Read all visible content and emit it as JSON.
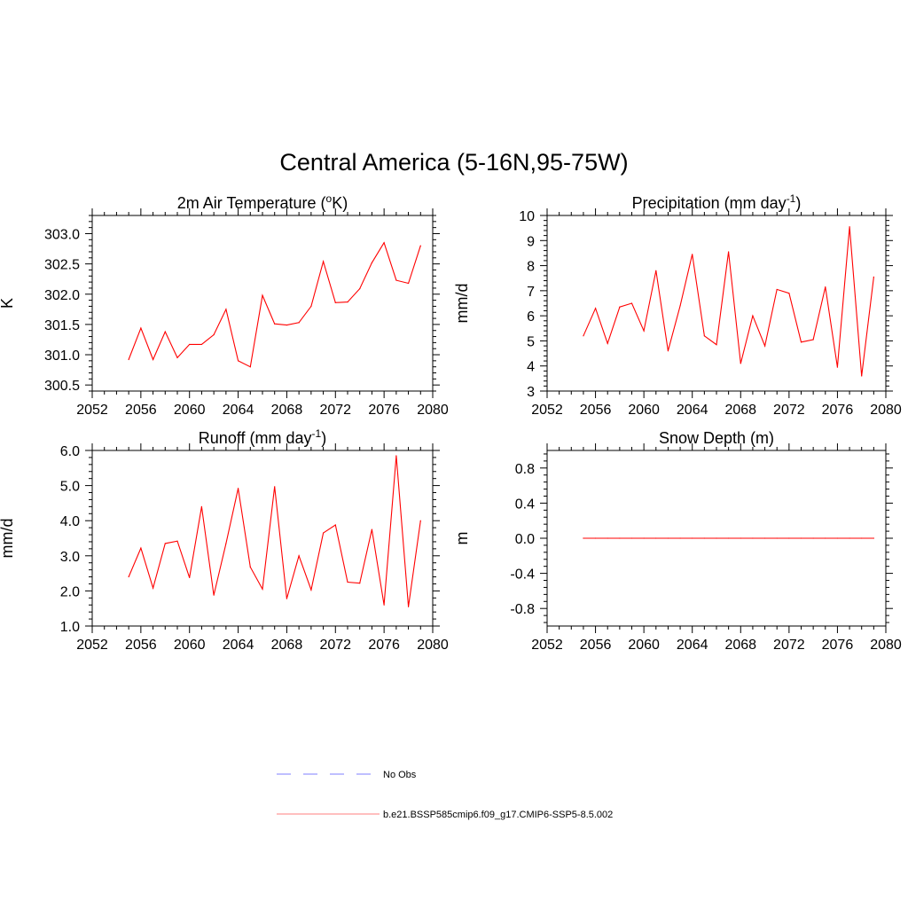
{
  "page": {
    "title": "Central America (5-16N,95-75W)"
  },
  "chart_data": [
    {
      "type": "line",
      "title": "2m Air Temperature (",
      "title_sup": "o",
      "title_suffix": "K)",
      "ylabel": "K",
      "xlim": [
        2052,
        2080
      ],
      "ylim": [
        300.4,
        303.3
      ],
      "x_ticks": [
        2052,
        2056,
        2060,
        2064,
        2068,
        2072,
        2076,
        2080
      ],
      "y_ticks": [
        300.5,
        301.0,
        301.5,
        302.0,
        302.5,
        303.0
      ],
      "y_tick_labels": [
        "300.5",
        "301.0",
        "301.5",
        "302.0",
        "302.5",
        "303.0"
      ],
      "x": [
        2055,
        2056,
        2057,
        2058,
        2059,
        2060,
        2061,
        2062,
        2063,
        2064,
        2065,
        2066,
        2067,
        2068,
        2069,
        2070,
        2071,
        2072,
        2073,
        2074,
        2075,
        2076,
        2077,
        2078,
        2079
      ],
      "series": [
        {
          "values": [
            300.92,
            301.44,
            300.92,
            301.38,
            300.95,
            301.17,
            301.17,
            301.33,
            301.75,
            300.9,
            300.8,
            301.98,
            301.51,
            301.49,
            301.53,
            301.8,
            302.54,
            301.86,
            301.87,
            302.09,
            302.52,
            302.85,
            302.23,
            302.18,
            302.8
          ],
          "color": "#ff0000"
        }
      ]
    },
    {
      "type": "line",
      "title": "Precipitation (mm day",
      "title_sup": "-1",
      "title_suffix": ")",
      "ylabel": "mm/d",
      "xlim": [
        2052,
        2080
      ],
      "ylim": [
        3,
        10
      ],
      "x_ticks": [
        2052,
        2056,
        2060,
        2064,
        2068,
        2072,
        2076,
        2080
      ],
      "y_ticks": [
        3,
        4,
        5,
        6,
        7,
        8,
        9,
        10
      ],
      "y_tick_labels": [
        "3",
        "4",
        "5",
        "6",
        "7",
        "8",
        "9",
        "10"
      ],
      "x": [
        2055,
        2056,
        2057,
        2058,
        2059,
        2060,
        2061,
        2062,
        2063,
        2064,
        2065,
        2066,
        2067,
        2068,
        2069,
        2070,
        2071,
        2072,
        2073,
        2074,
        2075,
        2076,
        2077,
        2078,
        2079
      ],
      "series": [
        {
          "values": [
            5.2,
            6.3,
            4.9,
            6.35,
            6.5,
            5.4,
            7.8,
            4.6,
            6.4,
            8.45,
            5.2,
            4.85,
            8.55,
            4.1,
            6.0,
            4.8,
            7.05,
            6.9,
            4.95,
            5.05,
            7.15,
            3.95,
            9.55,
            3.6,
            7.55
          ],
          "color": "#ff0000"
        }
      ]
    },
    {
      "type": "line",
      "title": "Runoff (mm day",
      "title_sup": "-1",
      "title_suffix": ")",
      "ylabel": "mm/d",
      "xlim": [
        2052,
        2080
      ],
      "ylim": [
        1.0,
        6.0
      ],
      "x_ticks": [
        2052,
        2056,
        2060,
        2064,
        2068,
        2072,
        2076,
        2080
      ],
      "y_ticks": [
        1,
        2,
        3,
        4,
        5,
        6
      ],
      "y_tick_labels": [
        "1.0",
        "2.0",
        "3.0",
        "4.0",
        "5.0",
        "6.0"
      ],
      "x": [
        2055,
        2056,
        2057,
        2058,
        2059,
        2060,
        2061,
        2062,
        2063,
        2064,
        2065,
        2066,
        2067,
        2068,
        2069,
        2070,
        2071,
        2072,
        2073,
        2074,
        2075,
        2076,
        2077,
        2078,
        2079
      ],
      "series": [
        {
          "values": [
            2.4,
            3.22,
            2.08,
            3.35,
            3.42,
            2.38,
            4.4,
            1.88,
            3.35,
            4.92,
            2.68,
            2.05,
            4.97,
            1.78,
            3.0,
            2.03,
            3.65,
            3.88,
            2.25,
            2.22,
            3.75,
            1.6,
            5.85,
            1.55,
            4.0
          ],
          "color": "#ff0000"
        }
      ]
    },
    {
      "type": "line",
      "title": "Snow Depth (m)",
      "title_sup": "",
      "title_suffix": "",
      "ylabel": "m",
      "xlim": [
        2052,
        2080
      ],
      "ylim": [
        -1.0,
        1.0
      ],
      "x_ticks": [
        2052,
        2056,
        2060,
        2064,
        2068,
        2072,
        2076,
        2080
      ],
      "y_ticks": [
        -0.8,
        -0.4,
        0.0,
        0.4,
        0.8
      ],
      "y_tick_labels": [
        "-0.8",
        "-0.4",
        "0.0",
        "0.4",
        "0.8"
      ],
      "x": [
        2055,
        2056,
        2057,
        2058,
        2059,
        2060,
        2061,
        2062,
        2063,
        2064,
        2065,
        2066,
        2067,
        2068,
        2069,
        2070,
        2071,
        2072,
        2073,
        2074,
        2075,
        2076,
        2077,
        2078,
        2079
      ],
      "series": [
        {
          "values": [
            0,
            0,
            0,
            0,
            0,
            0,
            0,
            0,
            0,
            0,
            0,
            0,
            0,
            0,
            0,
            0,
            0,
            0,
            0,
            0,
            0,
            0,
            0,
            0,
            0
          ],
          "color": "#ff0000"
        }
      ]
    }
  ],
  "legend": {
    "items": [
      {
        "label": "No Obs",
        "color": "#9999ff",
        "style": "dashed"
      },
      {
        "label": "b.e21.BSSP585cmip6.f09_g17.CMIP6-SSP5-8.5.002",
        "color": "#ff9999",
        "style": "solid"
      }
    ]
  }
}
